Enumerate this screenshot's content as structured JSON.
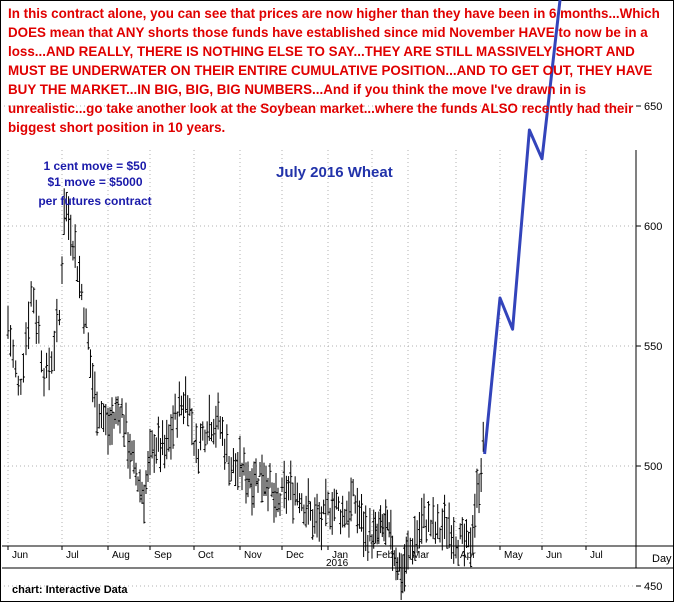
{
  "commentary": "In this contract alone, you can see that prices are now higher than they have been in 6 months...Which DOES mean that ANY shorts those funds have established since mid November HAVE to now be in a loss...AND REALLY, THERE IS NOTHING ELSE TO SAY...THEY ARE STILL MASSIVELY SHORT AND MUST BE UNDERWATER ON THEIR ENTIRE CUMULATIVE POSITION...AND TO GET OUT, THEY HAVE BUY THE MARKET...IN BIG, BIG, BIG NUMBERS...And if you think the move I've drawn in is unrealistic...go take another look at the Soybean market...where the funds ALSO recently had their biggest short position in 10 years.",
  "source_note": "chart: Interactive Data",
  "colors": {
    "commentary": "#e00000",
    "title": "#2233aa",
    "annotation": "#1a1aaa",
    "bars": "#000000",
    "projection": "#3344bb",
    "grid": "#b0b0b0"
  },
  "chart_data": {
    "type": "bar",
    "subtype": "ohlc-price-with-projection",
    "title": "July 2016 Wheat",
    "annotation_lines": [
      "1 cent move = $50",
      "$1 move = $5000",
      "per futures contract"
    ],
    "y_unit_label": "",
    "x_unit_label": "Day",
    "ylim": [
      425,
      760
    ],
    "y_ticks": [
      450,
      500,
      550,
      600,
      650,
      700,
      750
    ],
    "grid": "dotted vertical and horizontal",
    "month_labels": [
      "Jun",
      "Jul",
      "Aug",
      "Sep",
      "Oct",
      "Nov",
      "Dec",
      "Jan",
      "Feb",
      "Mar",
      "Apr",
      "May",
      "Jun",
      "Jul"
    ],
    "year_label": "2016",
    "price_path_keypoints": [
      {
        "month_pos": 0.0,
        "price": 560
      },
      {
        "month_pos": 0.2,
        "price": 530
      },
      {
        "month_pos": 0.45,
        "price": 575
      },
      {
        "month_pos": 0.7,
        "price": 535
      },
      {
        "month_pos": 0.95,
        "price": 560
      },
      {
        "month_pos": 1.05,
        "price": 610
      },
      {
        "month_pos": 1.2,
        "price": 600
      },
      {
        "month_pos": 1.45,
        "price": 570
      },
      {
        "month_pos": 1.7,
        "price": 530
      },
      {
        "month_pos": 2.0,
        "price": 515
      },
      {
        "month_pos": 2.3,
        "price": 525
      },
      {
        "month_pos": 2.6,
        "price": 500
      },
      {
        "month_pos": 2.85,
        "price": 488
      },
      {
        "month_pos": 3.1,
        "price": 510
      },
      {
        "month_pos": 3.35,
        "price": 505
      },
      {
        "month_pos": 3.6,
        "price": 522
      },
      {
        "month_pos": 3.85,
        "price": 530
      },
      {
        "month_pos": 4.05,
        "price": 505
      },
      {
        "month_pos": 4.3,
        "price": 520
      },
      {
        "month_pos": 4.55,
        "price": 518
      },
      {
        "month_pos": 4.8,
        "price": 500
      },
      {
        "month_pos": 5.05,
        "price": 498
      },
      {
        "month_pos": 5.3,
        "price": 495
      },
      {
        "month_pos": 5.6,
        "price": 498
      },
      {
        "month_pos": 5.85,
        "price": 482
      },
      {
        "month_pos": 6.1,
        "price": 490
      },
      {
        "month_pos": 6.35,
        "price": 490
      },
      {
        "month_pos": 6.6,
        "price": 480
      },
      {
        "month_pos": 6.85,
        "price": 475
      },
      {
        "month_pos": 7.1,
        "price": 485
      },
      {
        "month_pos": 7.35,
        "price": 480
      },
      {
        "month_pos": 7.6,
        "price": 486
      },
      {
        "month_pos": 7.85,
        "price": 472
      },
      {
        "month_pos": 8.1,
        "price": 470
      },
      {
        "month_pos": 8.35,
        "price": 475
      },
      {
        "month_pos": 8.6,
        "price": 465
      },
      {
        "month_pos": 8.85,
        "price": 455
      },
      {
        "month_pos": 9.1,
        "price": 468
      },
      {
        "month_pos": 9.35,
        "price": 478
      },
      {
        "month_pos": 9.6,
        "price": 472
      },
      {
        "month_pos": 9.85,
        "price": 476
      },
      {
        "month_pos": 10.1,
        "price": 468
      },
      {
        "month_pos": 10.3,
        "price": 465
      },
      {
        "month_pos": 10.5,
        "price": 490
      },
      {
        "month_pos": 10.65,
        "price": 512
      }
    ],
    "projection_series": {
      "x_month_pos": [
        10.65,
        11.0,
        11.3,
        11.7,
        12.0,
        12.6
      ],
      "price": [
        505,
        570,
        557,
        640,
        628,
        725
      ]
    }
  }
}
